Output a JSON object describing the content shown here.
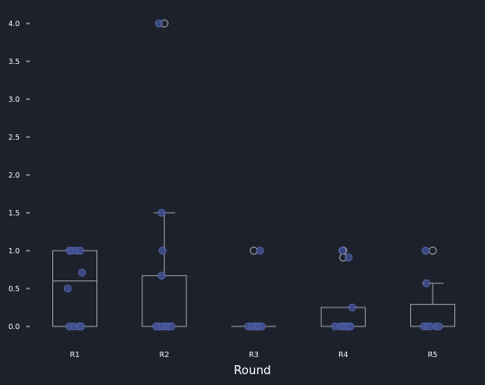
{
  "chart_data": {
    "type": "box",
    "title": "",
    "xlabel": "Round",
    "ylabel": "",
    "categories": [
      "R1",
      "R2",
      "R3",
      "R4",
      "R5"
    ],
    "y_ticks": [
      0.0,
      0.5,
      1.0,
      1.5,
      2.0,
      2.5,
      3.0,
      3.5,
      4.0
    ],
    "y_tick_labels": [
      "0.0",
      "0.5",
      "1.0",
      "1.5",
      "2.0",
      "2.5",
      "3.0",
      "3.5",
      "4.0"
    ],
    "ylim": [
      -0.1,
      4.1
    ],
    "grid": false,
    "boxes": [
      {
        "category": "R1",
        "q1": 0.0,
        "median": 0.6,
        "q3": 1.0,
        "whisker_low": 0.0,
        "whisker_high": 1.0,
        "outliers": []
      },
      {
        "category": "R2",
        "q1": 0.0,
        "median": 0.0,
        "q3": 0.67,
        "whisker_low": 0.0,
        "whisker_high": 1.5,
        "outliers": [
          4.0
        ]
      },
      {
        "category": "R3",
        "q1": 0.0,
        "median": 0.0,
        "q3": 0.0,
        "whisker_low": 0.0,
        "whisker_high": 0.0,
        "outliers": [
          1.0
        ]
      },
      {
        "category": "R4",
        "q1": 0.0,
        "median": 0.0,
        "q3": 0.25,
        "whisker_low": 0.0,
        "whisker_high": 0.25,
        "outliers": [
          1.0,
          0.91
        ]
      },
      {
        "category": "R5",
        "q1": 0.0,
        "median": 0.0,
        "q3": 0.29,
        "whisker_low": 0.0,
        "whisker_high": 0.57,
        "outliers": [
          1.0
        ]
      }
    ],
    "points": [
      {
        "category": "R1",
        "values": [
          1.0,
          1.0,
          1.0,
          1.0,
          0.71,
          0.5,
          0.0,
          0.0,
          0.0,
          0.0
        ],
        "jitter": [
          -0.06,
          -0.03,
          0.02,
          0.06,
          0.08,
          -0.08,
          -0.06,
          -0.01,
          0.05,
          0.07
        ]
      },
      {
        "category": "R2",
        "values": [
          4.0,
          1.5,
          1.0,
          0.67,
          0.0,
          0.0,
          0.0,
          0.0,
          0.0,
          0.0
        ],
        "jitter": [
          -0.06,
          -0.03,
          -0.02,
          -0.03,
          -0.09,
          -0.06,
          -0.02,
          0.02,
          0.05,
          0.08
        ]
      },
      {
        "category": "R3",
        "values": [
          1.0,
          0.0,
          0.0,
          0.0,
          0.0,
          0.0,
          0.0
        ],
        "jitter": [
          0.07,
          -0.06,
          -0.02,
          0.01,
          0.04,
          0.06,
          0.09
        ]
      },
      {
        "category": "R4",
        "values": [
          1.0,
          0.91,
          0.25,
          0.0,
          0.0,
          0.0,
          0.0,
          0.0,
          0.0
        ],
        "jitter": [
          -0.01,
          0.06,
          0.1,
          -0.09,
          -0.03,
          0.0,
          0.03,
          0.06,
          0.08
        ]
      },
      {
        "category": "R5",
        "values": [
          1.0,
          0.57,
          0.0,
          0.0,
          0.0,
          0.0,
          0.0
        ],
        "jitter": [
          -0.08,
          -0.07,
          -0.1,
          -0.06,
          -0.03,
          0.04,
          0.07
        ]
      }
    ],
    "colors": {
      "background": "#1c212c",
      "box_line": "#9a9a9a",
      "point_fill": "#3f4f8f",
      "point_stroke": "#5a6ab0",
      "outlier_stroke": "#a8a8a8",
      "text": "#ffffff"
    }
  }
}
